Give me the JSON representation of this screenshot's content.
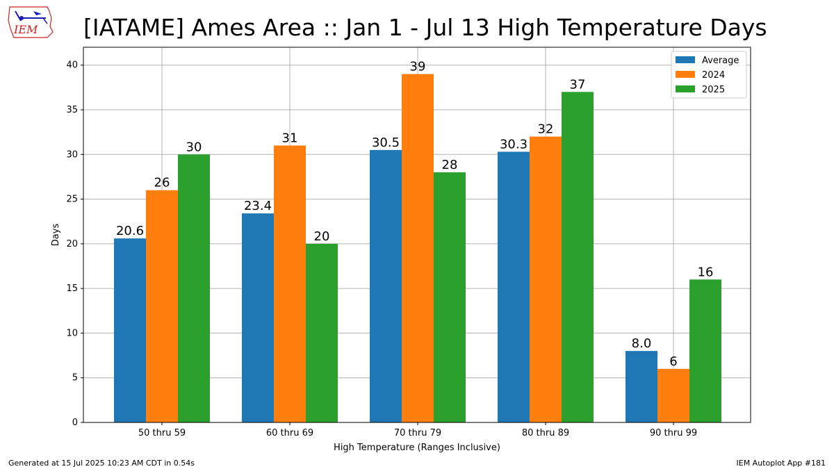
{
  "logo_text": "IEM",
  "colors": {
    "average": "#1f77b4",
    "y2024": "#ff7f0e",
    "y2025": "#2ca02c",
    "logo_red": "#cc2222",
    "logo_blue": "#1a1ab8"
  },
  "footer": {
    "left": "Generated at 15 Jul 2025 10:23 AM CDT in 0.54s",
    "right": "IEM Autoplot App #181"
  },
  "chart_data": {
    "type": "bar",
    "title": "[IATAME] Ames Area :: Jan 1 - Jul 13 High Temperature Days",
    "xlabel": "High Temperature (Ranges Inclusive)",
    "ylabel": "Days",
    "ylim": [
      0,
      42
    ],
    "yticks": [
      0,
      5,
      10,
      15,
      20,
      25,
      30,
      35,
      40
    ],
    "grid": true,
    "legend_position": "top-right",
    "categories": [
      "50 thru 59",
      "60 thru 69",
      "70 thru 79",
      "80 thru 89",
      "90 thru 99"
    ],
    "series": [
      {
        "name": "Average",
        "color": "#1f77b4",
        "values": [
          20.6,
          23.4,
          30.5,
          30.3,
          8.0
        ],
        "labels": [
          "20.6",
          "23.4",
          "30.5",
          "30.3",
          "8.0"
        ]
      },
      {
        "name": "2024",
        "color": "#ff7f0e",
        "values": [
          26,
          31,
          39,
          32,
          6
        ],
        "labels": [
          "26",
          "31",
          "39",
          "32",
          "6"
        ]
      },
      {
        "name": "2025",
        "color": "#2ca02c",
        "values": [
          30,
          20,
          28,
          37,
          16
        ],
        "labels": [
          "30",
          "20",
          "28",
          "37",
          "16"
        ]
      }
    ]
  }
}
